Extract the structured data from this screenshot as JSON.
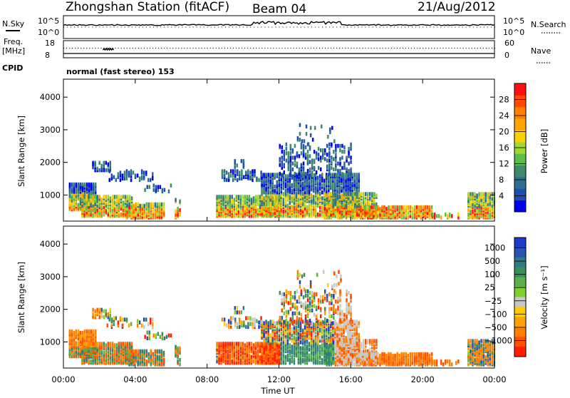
{
  "header": {
    "station": "Zhongshan Station (fitACF)",
    "beam": "Beam 04",
    "date": "21/Aug/2012"
  },
  "labels": {
    "nsky": "N.Sky",
    "freq_line1": "Freq.",
    "freq_line2": "[MHz]",
    "cpid": "CPID",
    "nsearch": "N.Search",
    "nave": "Nave",
    "cpid_text": "normal (fast stereo) 153"
  },
  "chart_data": [
    {
      "type": "line",
      "name": "N.Sky / N.Search",
      "ylim_left_labels": [
        "10^0",
        "10^5"
      ],
      "ylim_right_labels": [
        "10^0",
        "10^5"
      ]
    },
    {
      "type": "line",
      "name": "Freq / Nave",
      "left_axis_ticks": [
        "8",
        "18"
      ],
      "right_axis_ticks": [
        "0",
        "60"
      ]
    },
    {
      "type": "heatmap",
      "quantity": "Power",
      "ylabel": "Slant Range [km]",
      "yticks": [
        "1000",
        "2000",
        "3000",
        "4000"
      ],
      "ylim": [
        200,
        4550
      ],
      "colorbar_label": "Power [dB]",
      "colorbar_ticks": [
        "4",
        "8",
        "12",
        "16",
        "20",
        "24",
        "28"
      ],
      "colorbar_range": [
        0,
        32
      ],
      "colorbar_colors": [
        "#0000f0",
        "#1e4db4",
        "#2f6e8e",
        "#3f8a6a",
        "#5cbc49",
        "#9fd830",
        "#ffd000",
        "#ffa500",
        "#ff7f00",
        "#ff4a00",
        "#ff1010"
      ]
    },
    {
      "type": "heatmap",
      "quantity": "Velocity",
      "ylabel": "Slant Range [km]",
      "yticks": [
        "1000",
        "2000",
        "3000",
        "4000"
      ],
      "ylim": [
        200,
        4550
      ],
      "xlabel": "Time UT",
      "xticks": [
        "00:00",
        "04:00",
        "08:00",
        "12:00",
        "16:00",
        "20:00",
        "00:00"
      ],
      "colorbar_label": "Velocity [m s⁻¹]",
      "colorbar_ticks": [
        "1000",
        "500",
        "100",
        "25",
        "−25",
        "−100",
        "−500",
        "−1000"
      ],
      "colorbar_colors": [
        "#1c3cc8",
        "#2955b0",
        "#2e7a84",
        "#3a8f5c",
        "#5ab04a",
        "#7fcf30",
        "#c8c8c8",
        "#ffcc00",
        "#ffa200",
        "#ff8000",
        "#ff5200",
        "#ff1e00"
      ]
    }
  ]
}
